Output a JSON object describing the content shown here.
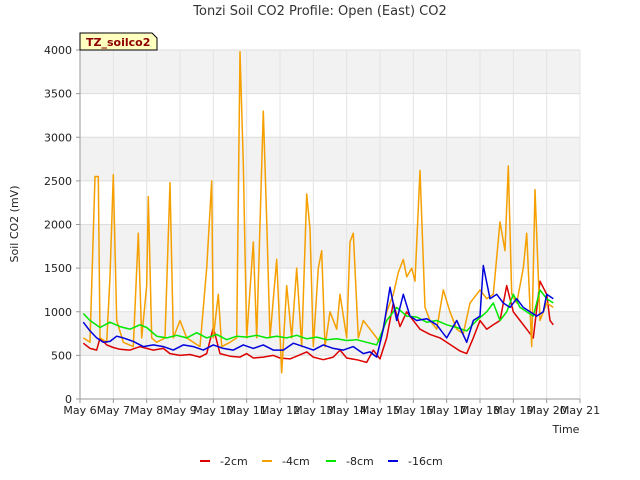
{
  "chart_data": {
    "type": "line",
    "title": "Tonzi Soil CO2 Profile: Open (East) CO2",
    "xlabel": "Time",
    "ylabel": "Soil CO2 (mV)",
    "tag": "TZ_soilco2",
    "xlim": [
      6,
      21
    ],
    "ylim": [
      0,
      4000
    ],
    "x_ticks": [
      6,
      7,
      8,
      9,
      10,
      11,
      12,
      13,
      14,
      15,
      16,
      17,
      18,
      19,
      20,
      21
    ],
    "x_tick_labels": [
      "May 6",
      "May 7",
      "May 8",
      "May 9",
      "May 10",
      "May 11",
      "May 12",
      "May 13",
      "May 14",
      "May 15",
      "May 16",
      "May 17",
      "May 18",
      "May 19",
      "May 20",
      "May 21"
    ],
    "y_ticks": [
      0,
      500,
      1000,
      1500,
      2000,
      2500,
      3000,
      3500,
      4000
    ],
    "y_tick_labels": [
      "0",
      "500",
      "1000",
      "1500",
      "2000",
      "2500",
      "3000",
      "3500",
      "4000"
    ],
    "grid": true,
    "legend_position": "bottom",
    "series": [
      {
        "name": "-2cm",
        "color": "#dd0000",
        "points": [
          [
            6.1,
            640
          ],
          [
            6.3,
            580
          ],
          [
            6.5,
            560
          ],
          [
            6.6,
            700
          ],
          [
            6.8,
            620
          ],
          [
            7.0,
            590
          ],
          [
            7.2,
            570
          ],
          [
            7.5,
            560
          ],
          [
            7.8,
            600
          ],
          [
            8.0,
            580
          ],
          [
            8.2,
            560
          ],
          [
            8.5,
            580
          ],
          [
            8.7,
            520
          ],
          [
            9.0,
            500
          ],
          [
            9.3,
            510
          ],
          [
            9.6,
            480
          ],
          [
            9.8,
            520
          ],
          [
            10.0,
            820
          ],
          [
            10.2,
            520
          ],
          [
            10.5,
            490
          ],
          [
            10.8,
            480
          ],
          [
            11.0,
            520
          ],
          [
            11.2,
            470
          ],
          [
            11.5,
            480
          ],
          [
            11.8,
            500
          ],
          [
            12.0,
            470
          ],
          [
            12.3,
            460
          ],
          [
            12.5,
            490
          ],
          [
            12.8,
            540
          ],
          [
            13.0,
            480
          ],
          [
            13.3,
            450
          ],
          [
            13.6,
            480
          ],
          [
            13.8,
            560
          ],
          [
            14.0,
            470
          ],
          [
            14.3,
            450
          ],
          [
            14.6,
            420
          ],
          [
            14.8,
            560
          ],
          [
            15.0,
            460
          ],
          [
            15.2,
            700
          ],
          [
            15.4,
            1100
          ],
          [
            15.6,
            830
          ],
          [
            15.8,
            1000
          ],
          [
            16.0,
            900
          ],
          [
            16.2,
            800
          ],
          [
            16.5,
            740
          ],
          [
            16.8,
            700
          ],
          [
            17.0,
            650
          ],
          [
            17.2,
            600
          ],
          [
            17.4,
            550
          ],
          [
            17.6,
            520
          ],
          [
            17.8,
            700
          ],
          [
            18.0,
            900
          ],
          [
            18.2,
            800
          ],
          [
            18.4,
            850
          ],
          [
            18.6,
            900
          ],
          [
            18.8,
            1300
          ],
          [
            19.0,
            1000
          ],
          [
            19.2,
            900
          ],
          [
            19.4,
            800
          ],
          [
            19.6,
            700
          ],
          [
            19.8,
            1350
          ],
          [
            20.0,
            1200
          ],
          [
            20.1,
            900
          ],
          [
            20.2,
            850
          ]
        ]
      },
      {
        "name": "-4cm",
        "color": "#f5a000",
        "points": [
          [
            6.1,
            700
          ],
          [
            6.3,
            650
          ],
          [
            6.45,
            2550
          ],
          [
            6.55,
            2550
          ],
          [
            6.6,
            700
          ],
          [
            6.8,
            650
          ],
          [
            6.9,
            1400
          ],
          [
            7.0,
            2570
          ],
          [
            7.1,
            900
          ],
          [
            7.3,
            650
          ],
          [
            7.6,
            600
          ],
          [
            7.75,
            1900
          ],
          [
            7.85,
            700
          ],
          [
            8.0,
            1300
          ],
          [
            8.05,
            2320
          ],
          [
            8.15,
            700
          ],
          [
            8.3,
            650
          ],
          [
            8.55,
            700
          ],
          [
            8.7,
            2480
          ],
          [
            8.8,
            700
          ],
          [
            9.0,
            900
          ],
          [
            9.2,
            700
          ],
          [
            9.4,
            650
          ],
          [
            9.6,
            600
          ],
          [
            9.8,
            1500
          ],
          [
            9.95,
            2500
          ],
          [
            10.0,
            700
          ],
          [
            10.15,
            1200
          ],
          [
            10.25,
            600
          ],
          [
            10.5,
            650
          ],
          [
            10.7,
            700
          ],
          [
            10.8,
            3980
          ],
          [
            10.9,
            2700
          ],
          [
            11.0,
            700
          ],
          [
            11.2,
            1800
          ],
          [
            11.3,
            700
          ],
          [
            11.5,
            3300
          ],
          [
            11.6,
            2050
          ],
          [
            11.7,
            700
          ],
          [
            11.9,
            1600
          ],
          [
            12.05,
            300
          ],
          [
            12.2,
            1300
          ],
          [
            12.35,
            700
          ],
          [
            12.5,
            1500
          ],
          [
            12.65,
            600
          ],
          [
            12.8,
            2350
          ],
          [
            12.9,
            1950
          ],
          [
            13.0,
            600
          ],
          [
            13.15,
            1500
          ],
          [
            13.25,
            1700
          ],
          [
            13.35,
            600
          ],
          [
            13.5,
            1000
          ],
          [
            13.7,
            800
          ],
          [
            13.8,
            1200
          ],
          [
            14.0,
            700
          ],
          [
            14.1,
            1800
          ],
          [
            14.2,
            1900
          ],
          [
            14.35,
            700
          ],
          [
            14.5,
            900
          ],
          [
            14.7,
            800
          ],
          [
            14.9,
            700
          ],
          [
            15.0,
            650
          ],
          [
            15.2,
            1000
          ],
          [
            15.4,
            1200
          ],
          [
            15.55,
            1450
          ],
          [
            15.7,
            1600
          ],
          [
            15.8,
            1400
          ],
          [
            15.95,
            1500
          ],
          [
            16.05,
            1350
          ],
          [
            16.2,
            2620
          ],
          [
            16.35,
            1050
          ],
          [
            16.5,
            900
          ],
          [
            16.7,
            800
          ],
          [
            16.9,
            1250
          ],
          [
            17.1,
            1000
          ],
          [
            17.3,
            800
          ],
          [
            17.5,
            750
          ],
          [
            17.7,
            1100
          ],
          [
            17.9,
            1200
          ],
          [
            18.0,
            1250
          ],
          [
            18.2,
            1150
          ],
          [
            18.4,
            1200
          ],
          [
            18.6,
            2030
          ],
          [
            18.75,
            1700
          ],
          [
            18.85,
            2670
          ],
          [
            18.95,
            1200
          ],
          [
            19.1,
            1100
          ],
          [
            19.3,
            1500
          ],
          [
            19.4,
            1900
          ],
          [
            19.55,
            600
          ],
          [
            19.65,
            2400
          ],
          [
            19.8,
            900
          ],
          [
            20.0,
            1100
          ],
          [
            20.2,
            1050
          ]
        ]
      },
      {
        "name": "-8cm",
        "color": "#00e800",
        "points": [
          [
            6.1,
            980
          ],
          [
            6.3,
            900
          ],
          [
            6.6,
            820
          ],
          [
            6.9,
            880
          ],
          [
            7.2,
            830
          ],
          [
            7.5,
            800
          ],
          [
            7.8,
            850
          ],
          [
            8.0,
            820
          ],
          [
            8.3,
            720
          ],
          [
            8.6,
            700
          ],
          [
            8.9,
            730
          ],
          [
            9.2,
            700
          ],
          [
            9.5,
            760
          ],
          [
            9.8,
            700
          ],
          [
            10.1,
            740
          ],
          [
            10.4,
            680
          ],
          [
            10.7,
            720
          ],
          [
            11.0,
            710
          ],
          [
            11.3,
            730
          ],
          [
            11.6,
            700
          ],
          [
            11.9,
            720
          ],
          [
            12.2,
            700
          ],
          [
            12.5,
            730
          ],
          [
            12.8,
            690
          ],
          [
            13.1,
            710
          ],
          [
            13.4,
            680
          ],
          [
            13.7,
            690
          ],
          [
            14.0,
            670
          ],
          [
            14.3,
            680
          ],
          [
            14.6,
            650
          ],
          [
            14.9,
            620
          ],
          [
            15.2,
            900
          ],
          [
            15.5,
            1050
          ],
          [
            15.8,
            950
          ],
          [
            16.1,
            940
          ],
          [
            16.4,
            880
          ],
          [
            16.7,
            900
          ],
          [
            17.0,
            850
          ],
          [
            17.3,
            820
          ],
          [
            17.6,
            780
          ],
          [
            17.9,
            900
          ],
          [
            18.2,
            1000
          ],
          [
            18.4,
            1100
          ],
          [
            18.6,
            900
          ],
          [
            18.8,
            1000
          ],
          [
            19.0,
            1200
          ],
          [
            19.2,
            1050
          ],
          [
            19.4,
            1000
          ],
          [
            19.6,
            950
          ],
          [
            19.8,
            1250
          ],
          [
            20.0,
            1150
          ],
          [
            20.2,
            1100
          ]
        ]
      },
      {
        "name": "-16cm",
        "color": "#0000dd",
        "points": [
          [
            6.1,
            880
          ],
          [
            6.3,
            780
          ],
          [
            6.5,
            700
          ],
          [
            6.7,
            650
          ],
          [
            6.9,
            660
          ],
          [
            7.1,
            720
          ],
          [
            7.3,
            700
          ],
          [
            7.6,
            660
          ],
          [
            7.9,
            600
          ],
          [
            8.2,
            620
          ],
          [
            8.5,
            600
          ],
          [
            8.8,
            560
          ],
          [
            9.1,
            620
          ],
          [
            9.4,
            600
          ],
          [
            9.7,
            560
          ],
          [
            10.0,
            620
          ],
          [
            10.3,
            580
          ],
          [
            10.6,
            560
          ],
          [
            10.9,
            620
          ],
          [
            11.2,
            580
          ],
          [
            11.5,
            620
          ],
          [
            11.8,
            560
          ],
          [
            12.1,
            560
          ],
          [
            12.4,
            640
          ],
          [
            12.7,
            600
          ],
          [
            13.0,
            560
          ],
          [
            13.3,
            620
          ],
          [
            13.6,
            580
          ],
          [
            13.9,
            560
          ],
          [
            14.2,
            600
          ],
          [
            14.5,
            520
          ],
          [
            14.7,
            540
          ],
          [
            14.9,
            480
          ],
          [
            15.1,
            800
          ],
          [
            15.3,
            1280
          ],
          [
            15.5,
            900
          ],
          [
            15.7,
            1200
          ],
          [
            15.9,
            950
          ],
          [
            16.1,
            900
          ],
          [
            16.4,
            920
          ],
          [
            16.7,
            850
          ],
          [
            17.0,
            700
          ],
          [
            17.3,
            900
          ],
          [
            17.6,
            650
          ],
          [
            17.8,
            900
          ],
          [
            18.0,
            950
          ],
          [
            18.1,
            1530
          ],
          [
            18.3,
            1150
          ],
          [
            18.5,
            1200
          ],
          [
            18.7,
            1100
          ],
          [
            18.9,
            1050
          ],
          [
            19.1,
            1150
          ],
          [
            19.3,
            1050
          ],
          [
            19.5,
            1000
          ],
          [
            19.7,
            950
          ],
          [
            19.9,
            1000
          ],
          [
            20.0,
            1200
          ],
          [
            20.2,
            1150
          ]
        ]
      }
    ]
  }
}
